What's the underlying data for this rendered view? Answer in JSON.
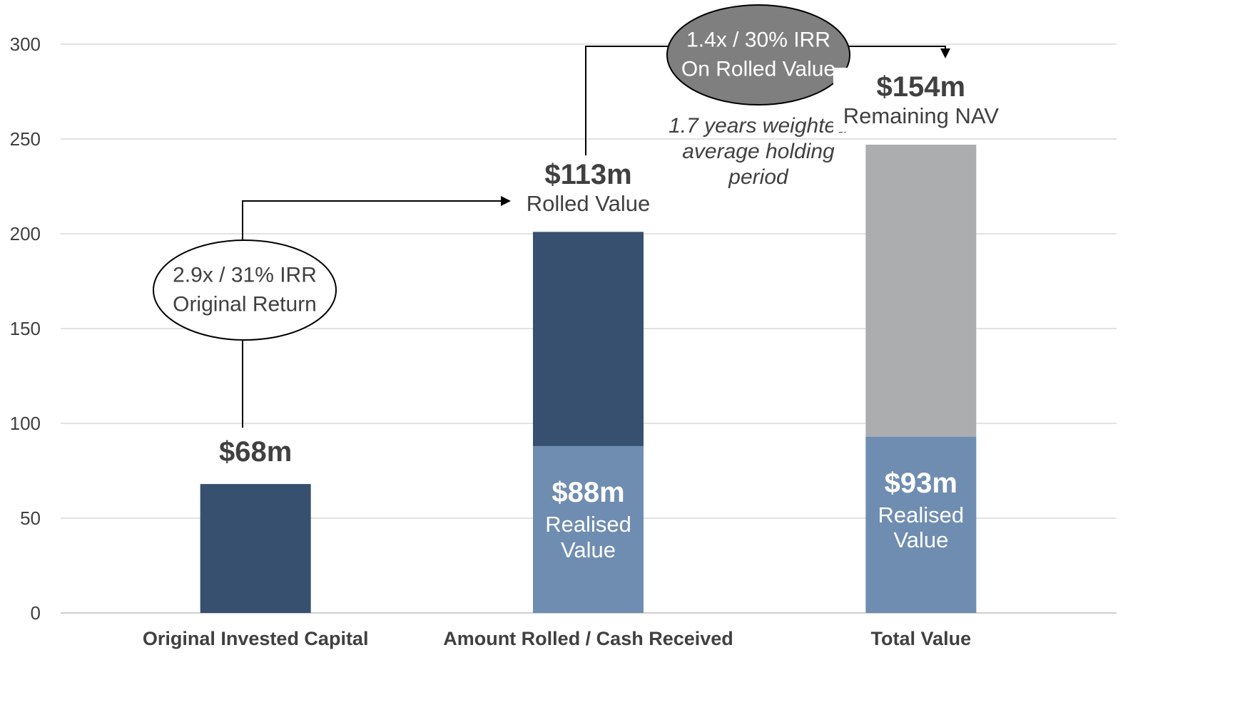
{
  "chart_data": {
    "type": "bar",
    "stacked": true,
    "categories": [
      "Original Invested Capital",
      "Amount Rolled / Cash Received",
      "Total Value"
    ],
    "series": [
      {
        "color": "#6f8db1",
        "values": [
          null,
          88,
          93
        ],
        "value_labels": [
          null,
          "$88m",
          "$93m"
        ],
        "labels": [
          null,
          "Realised Value",
          "Realised Value"
        ],
        "label_position": "inside"
      },
      {
        "color": "#37506f",
        "values": [
          68,
          113,
          null
        ],
        "value_labels": [
          "$68m",
          "$113m",
          null
        ],
        "labels": [
          null,
          "Rolled Value",
          null
        ],
        "label_position": "above"
      },
      {
        "color": "#acadaf",
        "values": [
          null,
          null,
          154
        ],
        "value_labels": [
          null,
          null,
          "$154m"
        ],
        "labels": [
          null,
          null,
          "Remaining NAV"
        ],
        "label_position": "above"
      }
    ],
    "ylim": [
      0,
      300
    ],
    "yticks": [
      0,
      50,
      100,
      150,
      200,
      250,
      300
    ],
    "grid": true,
    "annotations": [
      "2.9x / 31% IRR Original Return",
      "1.4x / 30% IRR On Rolled Value",
      "1.7 years weighted average holding period"
    ]
  }
}
